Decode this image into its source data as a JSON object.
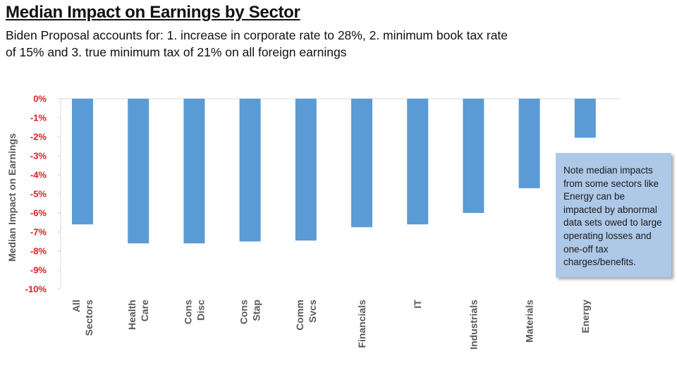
{
  "title": "Median Impact on Earnings by Sector",
  "subtitle": "Biden Proposal accounts for: 1. increase in corporate rate to 28%, 2. minimum book tax rate of 15% and 3. true minimum tax of 21% on all foreign earnings",
  "note": "Note median impacts from some sectors like Energy can be impacted by abnormal data sets owed to large operating losses and one-off tax charges/benefits.",
  "chart_data": {
    "type": "bar",
    "title": "Median Impact on Earnings by Sector",
    "ylabel": "Median Impact on Earnings",
    "xlabel": "",
    "ylim": [
      -10,
      0
    ],
    "yticks": [
      "0%",
      "-1%",
      "-2%",
      "-3%",
      "-4%",
      "-5%",
      "-6%",
      "-7%",
      "-8%",
      "-9%",
      "-10%"
    ],
    "categories": [
      [
        "All",
        "Sectors"
      ],
      [
        "Health",
        "Care"
      ],
      [
        "Cons",
        "Disc"
      ],
      [
        "Cons",
        "Stap"
      ],
      [
        "Comm",
        "Svcs"
      ],
      [
        "Financials"
      ],
      [
        "IT"
      ],
      [
        "Industrials"
      ],
      [
        "Materials"
      ],
      [
        "Energy"
      ]
    ],
    "values": [
      -6.6,
      -7.6,
      -7.6,
      -7.5,
      -7.45,
      -6.75,
      -6.6,
      -6.0,
      -4.7,
      -2.05
    ],
    "grid": false,
    "legend": "none",
    "bar_color": "#5b9bd5",
    "tick_color": "#e31c23",
    "axis_color": "#d9d9d9"
  }
}
